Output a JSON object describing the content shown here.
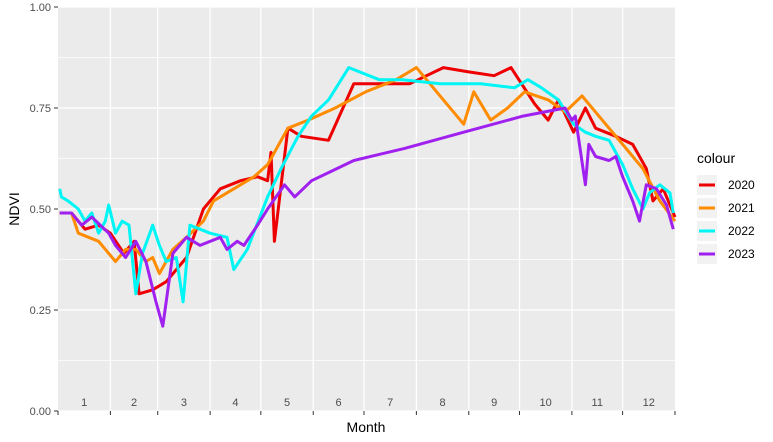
{
  "chart_data": {
    "type": "line",
    "xlabel": "Month",
    "ylabel": "NDVI",
    "xlim": [
      0,
      365
    ],
    "ylim": [
      0,
      1
    ],
    "yticks": [
      "0.00",
      "0.25",
      "0.50",
      "0.75",
      "1.00"
    ],
    "month_labels": [
      "1",
      "2",
      "3",
      "4",
      "5",
      "6",
      "7",
      "8",
      "9",
      "10",
      "11",
      "12"
    ],
    "grid": true,
    "legend_title": "colour",
    "legend_position": "right",
    "series": [
      {
        "name": "2020",
        "color": "#ee0000",
        "points": [
          [
            1,
            0.49
          ],
          [
            8,
            0.49
          ],
          [
            16,
            0.45
          ],
          [
            24,
            0.46
          ],
          [
            31,
            0.44
          ],
          [
            39,
            0.39
          ],
          [
            45,
            0.42
          ],
          [
            48,
            0.29
          ],
          [
            56,
            0.3
          ],
          [
            64,
            0.32
          ],
          [
            76,
            0.38
          ],
          [
            86,
            0.5
          ],
          [
            96,
            0.55
          ],
          [
            108,
            0.57
          ],
          [
            118,
            0.58
          ],
          [
            124,
            0.57
          ],
          [
            126,
            0.64
          ],
          [
            128,
            0.42
          ],
          [
            136,
            0.7
          ],
          [
            144,
            0.68
          ],
          [
            160,
            0.67
          ],
          [
            175,
            0.81
          ],
          [
            198,
            0.81
          ],
          [
            208,
            0.81
          ],
          [
            218,
            0.83
          ],
          [
            228,
            0.85
          ],
          [
            242,
            0.84
          ],
          [
            258,
            0.83
          ],
          [
            268,
            0.85
          ],
          [
            282,
            0.76
          ],
          [
            290,
            0.72
          ],
          [
            296,
            0.77
          ],
          [
            305,
            0.69
          ],
          [
            312,
            0.75
          ],
          [
            318,
            0.7
          ],
          [
            330,
            0.68
          ],
          [
            340,
            0.66
          ],
          [
            348,
            0.6
          ],
          [
            352,
            0.52
          ],
          [
            358,
            0.55
          ],
          [
            365,
            0.48
          ]
        ]
      },
      {
        "name": "2021",
        "color": "#ff8c00",
        "points": [
          [
            1,
            0.49
          ],
          [
            8,
            0.49
          ],
          [
            12,
            0.44
          ],
          [
            24,
            0.42
          ],
          [
            34,
            0.37
          ],
          [
            40,
            0.4
          ],
          [
            46,
            0.4
          ],
          [
            52,
            0.37
          ],
          [
            56,
            0.38
          ],
          [
            60,
            0.34
          ],
          [
            68,
            0.4
          ],
          [
            76,
            0.43
          ],
          [
            86,
            0.47
          ],
          [
            92,
            0.52
          ],
          [
            104,
            0.55
          ],
          [
            116,
            0.58
          ],
          [
            124,
            0.61
          ],
          [
            136,
            0.7
          ],
          [
            148,
            0.72
          ],
          [
            164,
            0.75
          ],
          [
            182,
            0.79
          ],
          [
            200,
            0.82
          ],
          [
            212,
            0.85
          ],
          [
            228,
            0.77
          ],
          [
            240,
            0.71
          ],
          [
            246,
            0.79
          ],
          [
            256,
            0.72
          ],
          [
            266,
            0.75
          ],
          [
            276,
            0.79
          ],
          [
            290,
            0.77
          ],
          [
            300,
            0.74
          ],
          [
            310,
            0.78
          ],
          [
            324,
            0.71
          ],
          [
            336,
            0.65
          ],
          [
            346,
            0.6
          ],
          [
            356,
            0.52
          ],
          [
            365,
            0.47
          ]
        ]
      },
      {
        "name": "2022",
        "color": "#00f5f5",
        "points": [
          [
            1,
            0.55
          ],
          [
            2,
            0.53
          ],
          [
            6,
            0.52
          ],
          [
            12,
            0.5
          ],
          [
            16,
            0.47
          ],
          [
            20,
            0.49
          ],
          [
            24,
            0.44
          ],
          [
            28,
            0.47
          ],
          [
            30,
            0.51
          ],
          [
            34,
            0.44
          ],
          [
            38,
            0.47
          ],
          [
            42,
            0.46
          ],
          [
            46,
            0.29
          ],
          [
            50,
            0.39
          ],
          [
            56,
            0.46
          ],
          [
            60,
            0.41
          ],
          [
            64,
            0.37
          ],
          [
            70,
            0.38
          ],
          [
            74,
            0.27
          ],
          [
            78,
            0.46
          ],
          [
            90,
            0.44
          ],
          [
            100,
            0.43
          ],
          [
            104,
            0.35
          ],
          [
            112,
            0.4
          ],
          [
            124,
            0.53
          ],
          [
            132,
            0.6
          ],
          [
            142,
            0.68
          ],
          [
            150,
            0.73
          ],
          [
            160,
            0.77
          ],
          [
            172,
            0.85
          ],
          [
            190,
            0.82
          ],
          [
            204,
            0.82
          ],
          [
            226,
            0.81
          ],
          [
            250,
            0.81
          ],
          [
            270,
            0.8
          ],
          [
            278,
            0.82
          ],
          [
            286,
            0.8
          ],
          [
            296,
            0.77
          ],
          [
            305,
            0.71
          ],
          [
            312,
            0.69
          ],
          [
            318,
            0.68
          ],
          [
            326,
            0.67
          ],
          [
            334,
            0.61
          ],
          [
            340,
            0.55
          ],
          [
            346,
            0.5
          ],
          [
            350,
            0.54
          ],
          [
            356,
            0.56
          ],
          [
            362,
            0.54
          ],
          [
            364,
            0.49
          ]
        ]
      },
      {
        "name": "2023",
        "color": "#a020f0",
        "points": [
          [
            1,
            0.49
          ],
          [
            8,
            0.49
          ],
          [
            14,
            0.46
          ],
          [
            20,
            0.48
          ],
          [
            30,
            0.44
          ],
          [
            34,
            0.41
          ],
          [
            40,
            0.38
          ],
          [
            46,
            0.42
          ],
          [
            52,
            0.37
          ],
          [
            58,
            0.27
          ],
          [
            62,
            0.21
          ],
          [
            68,
            0.39
          ],
          [
            76,
            0.43
          ],
          [
            84,
            0.41
          ],
          [
            96,
            0.43
          ],
          [
            100,
            0.4
          ],
          [
            106,
            0.42
          ],
          [
            110,
            0.41
          ],
          [
            118,
            0.46
          ],
          [
            124,
            0.5
          ],
          [
            134,
            0.56
          ],
          [
            140,
            0.53
          ],
          [
            150,
            0.57
          ],
          [
            160,
            0.59
          ],
          [
            175,
            0.62
          ],
          [
            205,
            0.65
          ],
          [
            240,
            0.69
          ],
          [
            275,
            0.73
          ],
          [
            300,
            0.75
          ],
          [
            304,
            0.72
          ],
          [
            306,
            0.73
          ],
          [
            312,
            0.56
          ],
          [
            314,
            0.66
          ],
          [
            318,
            0.63
          ],
          [
            326,
            0.62
          ],
          [
            330,
            0.63
          ],
          [
            334,
            0.58
          ],
          [
            340,
            0.52
          ],
          [
            344,
            0.47
          ],
          [
            348,
            0.56
          ],
          [
            354,
            0.55
          ],
          [
            360,
            0.51
          ],
          [
            364,
            0.45
          ]
        ]
      }
    ]
  }
}
